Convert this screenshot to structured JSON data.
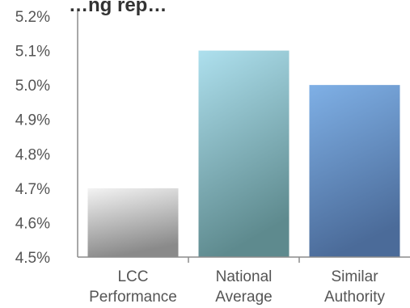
{
  "chart_data": {
    "type": "bar",
    "title_fragment": "…ng  rep…",
    "categories": [
      [
        "LCC",
        "Performance"
      ],
      [
        "National",
        "Average"
      ],
      [
        "Similar",
        "Authority"
      ]
    ],
    "values": [
      4.7,
      5.1,
      5.0
    ],
    "ylim": [
      4.5,
      5.2
    ],
    "yticks": [
      "5.2%",
      "5.1%",
      "5.0%",
      "4.9%",
      "4.8%",
      "4.7%",
      "4.6%",
      "4.5%"
    ],
    "grid": false,
    "legend": "none",
    "bar_gradients": [
      [
        "#f3f3f3",
        "#8a8a8a"
      ],
      [
        "#aee0ee",
        "#5e8a8e"
      ],
      [
        "#7fb0e6",
        "#4b6b99"
      ]
    ],
    "axis_color": "#8c8c8c"
  }
}
